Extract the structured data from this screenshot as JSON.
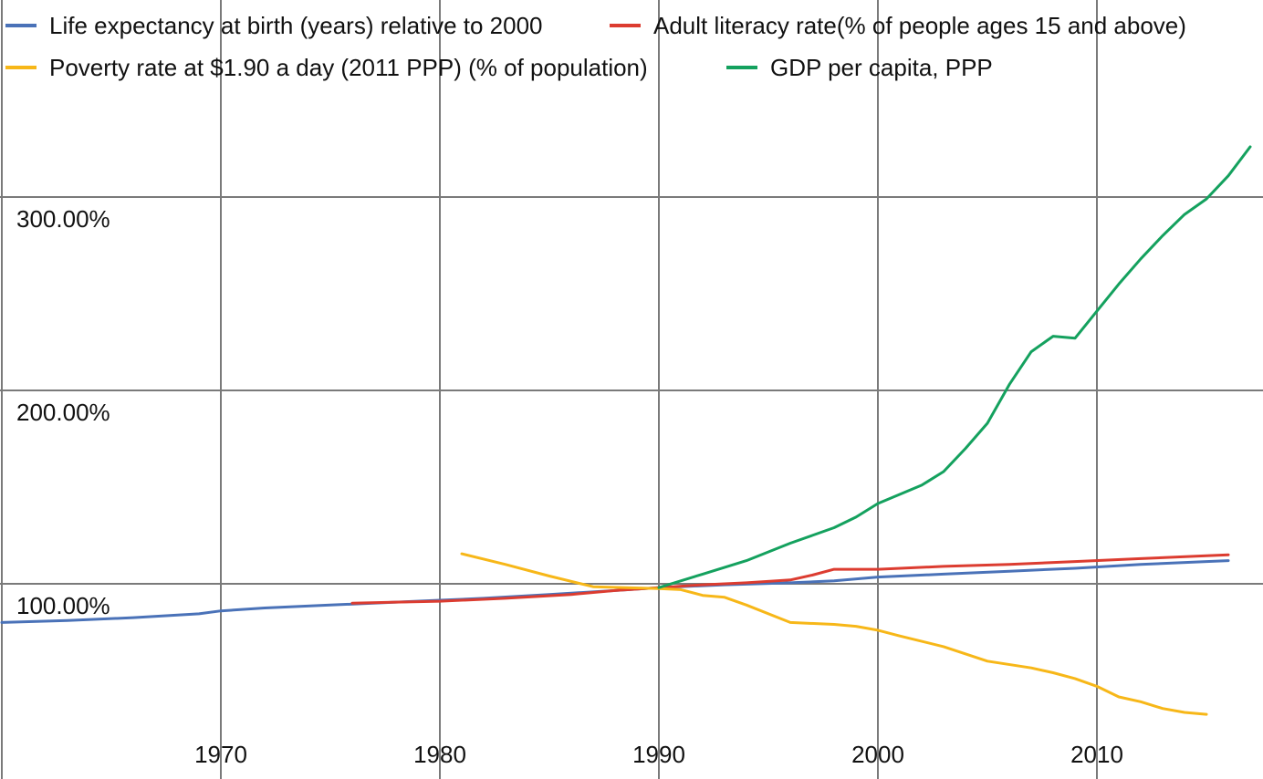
{
  "chart_data": {
    "type": "line",
    "title": "",
    "xlabel": "",
    "ylabel": "",
    "xlim": [
      1960,
      2017
    ],
    "ylim": [
      35,
      335
    ],
    "grid": true,
    "legend_position": "top-left",
    "x_ticks": [
      {
        "value": 1970,
        "label": "1970"
      },
      {
        "value": 1980,
        "label": "1980"
      },
      {
        "value": 1990,
        "label": "1990"
      },
      {
        "value": 2000,
        "label": "2000"
      },
      {
        "value": 2010,
        "label": "2010"
      }
    ],
    "y_ticks": [
      {
        "value": 100,
        "label": "100.00%"
      },
      {
        "value": 200,
        "label": "200.00%"
      },
      {
        "value": 300,
        "label": "300.00%"
      }
    ],
    "series": [
      {
        "name": "Life expectancy at birth (years) relative to 2000",
        "color": "#4a72b8",
        "points": [
          [
            1960,
            80
          ],
          [
            1963,
            81
          ],
          [
            1966,
            82.5
          ],
          [
            1969,
            84.5
          ],
          [
            1970,
            86
          ],
          [
            1972,
            87.5
          ],
          [
            1975,
            89
          ],
          [
            1978,
            90.5
          ],
          [
            1980,
            91.5
          ],
          [
            1982,
            92.5
          ],
          [
            1985,
            94.5
          ],
          [
            1988,
            96.5
          ],
          [
            1990,
            98
          ],
          [
            1993,
            99.5
          ],
          [
            1996,
            100.5
          ],
          [
            1998,
            101.5
          ],
          [
            2000,
            103.5
          ],
          [
            2003,
            105
          ],
          [
            2006,
            106.5
          ],
          [
            2009,
            108
          ],
          [
            2012,
            110
          ],
          [
            2015,
            111.5
          ],
          [
            2016,
            112
          ]
        ]
      },
      {
        "name": "Adult literacy rate(% of people ages 15 and above)",
        "color": "#dc3c30",
        "points": [
          [
            1976,
            90
          ],
          [
            1978,
            90.5
          ],
          [
            1980,
            91
          ],
          [
            1983,
            92.5
          ],
          [
            1986,
            94.5
          ],
          [
            1988,
            96.5
          ],
          [
            1990,
            98
          ],
          [
            1992,
            99.5
          ],
          [
            1994,
            100.5
          ],
          [
            1996,
            102
          ],
          [
            1997,
            104.5
          ],
          [
            1998,
            107.5
          ],
          [
            1999,
            107.5
          ],
          [
            2000,
            107.5
          ],
          [
            2003,
            109
          ],
          [
            2006,
            110
          ],
          [
            2009,
            111.5
          ],
          [
            2012,
            113
          ],
          [
            2015,
            114.5
          ],
          [
            2016,
            115
          ]
        ]
      },
      {
        "name": "Poverty rate at $1.90 a day (2011 PPP) (% of population)",
        "color": "#f7b718",
        "points": [
          [
            1981,
            115.5
          ],
          [
            1983,
            110
          ],
          [
            1985,
            104
          ],
          [
            1987,
            98.5
          ],
          [
            1990,
            97.5
          ],
          [
            1991,
            97
          ],
          [
            1992,
            94
          ],
          [
            1993,
            93
          ],
          [
            1994,
            89
          ],
          [
            1996,
            80
          ],
          [
            1998,
            79
          ],
          [
            1999,
            78
          ],
          [
            2000,
            76
          ],
          [
            2001,
            73
          ],
          [
            2003,
            67.5
          ],
          [
            2005,
            60
          ],
          [
            2007,
            56.5
          ],
          [
            2008,
            54
          ],
          [
            2009,
            51
          ],
          [
            2010,
            47
          ],
          [
            2011,
            41.5
          ],
          [
            2012,
            39
          ],
          [
            2013,
            35.5
          ],
          [
            2014,
            33.5
          ],
          [
            2015,
            32.5
          ]
        ]
      },
      {
        "name": "GDP per capita, PPP",
        "color": "#14a15e",
        "points": [
          [
            1990,
            98
          ],
          [
            1992,
            105
          ],
          [
            1994,
            112
          ],
          [
            1996,
            121
          ],
          [
            1997,
            125
          ],
          [
            1998,
            129
          ],
          [
            1999,
            134.5
          ],
          [
            2000,
            141.5
          ],
          [
            2002,
            151
          ],
          [
            2003,
            158
          ],
          [
            2004,
            170
          ],
          [
            2005,
            183
          ],
          [
            2006,
            203
          ],
          [
            2007,
            220
          ],
          [
            2008,
            228
          ],
          [
            2009,
            227
          ],
          [
            2010,
            241
          ],
          [
            2011,
            255
          ],
          [
            2012,
            268
          ],
          [
            2013,
            280
          ],
          [
            2014,
            291
          ],
          [
            2015,
            299
          ],
          [
            2016,
            311
          ],
          [
            2017,
            326
          ]
        ]
      }
    ]
  }
}
